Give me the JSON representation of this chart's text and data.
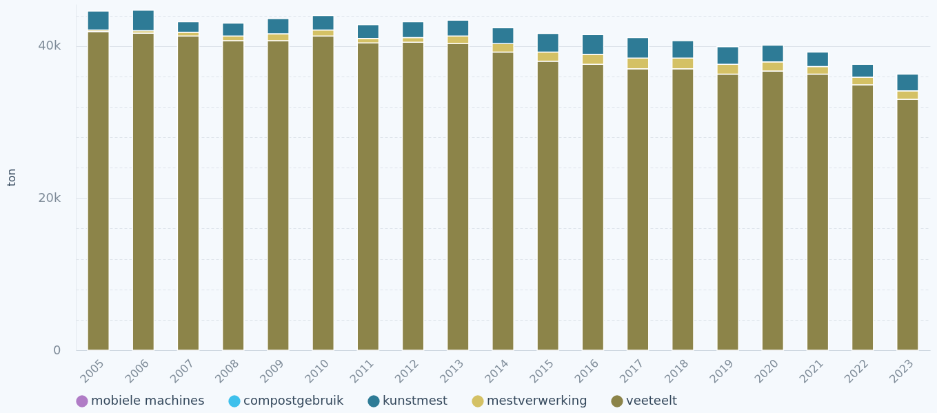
{
  "chart_data": {
    "type": "bar",
    "stacked": true,
    "ylabel": "ton",
    "categories": [
      "2005",
      "2006",
      "2007",
      "2008",
      "2009",
      "2010",
      "2011",
      "2012",
      "2013",
      "2014",
      "2015",
      "2016",
      "2017",
      "2018",
      "2019",
      "2020",
      "2021",
      "2022",
      "2023"
    ],
    "series": [
      {
        "name": "veeteelt",
        "color": "#8c8449",
        "values": [
          41900,
          41700,
          41300,
          40700,
          40700,
          41300,
          40400,
          40500,
          40300,
          39200,
          38000,
          37600,
          37000,
          37000,
          36300,
          36700,
          36300,
          34900,
          33000
        ]
      },
      {
        "name": "mestverwerking",
        "color": "#d4c165",
        "values": [
          200,
          300,
          500,
          600,
          900,
          800,
          600,
          600,
          1000,
          1100,
          1200,
          1300,
          1400,
          1400,
          1300,
          1200,
          1000,
          1000,
          1100
        ]
      },
      {
        "name": "kunstmest",
        "color": "#2e7b96",
        "values": [
          2500,
          2700,
          1400,
          1700,
          2000,
          1900,
          1800,
          2100,
          2100,
          2100,
          2450,
          2600,
          2700,
          2300,
          2300,
          2200,
          1900,
          1700,
          2200
        ]
      },
      {
        "name": "compostgebruik",
        "color": "#3ec0ec",
        "values": [
          null,
          null,
          null,
          null,
          null,
          null,
          null,
          null,
          null,
          null,
          null,
          null,
          null,
          null,
          null,
          null,
          null,
          null,
          null
        ]
      },
      {
        "name": "mobiele machines",
        "color": "#b07cc6",
        "values": [
          null,
          null,
          null,
          null,
          null,
          null,
          null,
          null,
          null,
          null,
          null,
          null,
          null,
          null,
          null,
          null,
          null,
          null,
          null
        ]
      }
    ],
    "ylim": [
      0,
      45500
    ],
    "yticks": [
      {
        "value": 0,
        "label": "0"
      },
      {
        "value": 4000,
        "label": null
      },
      {
        "value": 8000,
        "label": null
      },
      {
        "value": 12000,
        "label": null
      },
      {
        "value": 16000,
        "label": null
      },
      {
        "value": 20000,
        "label": "20k"
      },
      {
        "value": 24000,
        "label": null
      },
      {
        "value": 28000,
        "label": null
      },
      {
        "value": 32000,
        "label": null
      },
      {
        "value": 36000,
        "label": null
      },
      {
        "value": 40000,
        "label": "40k"
      },
      {
        "value": 44000,
        "label": null
      }
    ],
    "grid": true,
    "legend": "bottom"
  }
}
